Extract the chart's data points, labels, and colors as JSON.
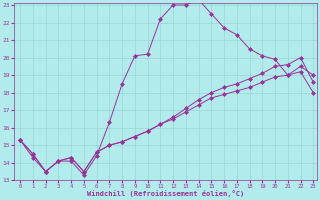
{
  "xlabel": "Windchill (Refroidissement éolien,°C)",
  "bg_color": "#b2ebeb",
  "grid_color": "#9dd4d4",
  "line_color": "#993399",
  "xmin": 0,
  "xmax": 23,
  "ymin": 13,
  "ymax": 23,
  "series": [
    [
      15.3,
      14.3,
      13.5,
      14.1,
      14.1,
      13.3,
      14.4,
      16.3,
      18.5,
      20.1,
      20.2,
      22.2,
      23.0,
      23.0,
      23.3,
      22.5,
      21.7,
      21.3,
      20.5,
      20.1,
      19.9,
      19.0,
      19.5,
      19.0
    ],
    [
      15.3,
      14.5,
      13.5,
      14.1,
      14.3,
      13.5,
      14.6,
      15.0,
      15.2,
      15.5,
      15.8,
      16.2,
      16.6,
      17.1,
      17.6,
      18.0,
      18.3,
      18.5,
      18.8,
      19.1,
      19.5,
      19.6,
      20.0,
      18.6
    ],
    [
      15.3,
      14.5,
      13.5,
      14.1,
      14.3,
      13.5,
      14.6,
      15.0,
      15.2,
      15.5,
      15.8,
      16.2,
      16.5,
      16.9,
      17.3,
      17.7,
      17.9,
      18.1,
      18.3,
      18.6,
      18.9,
      19.0,
      19.2,
      18.0
    ]
  ]
}
